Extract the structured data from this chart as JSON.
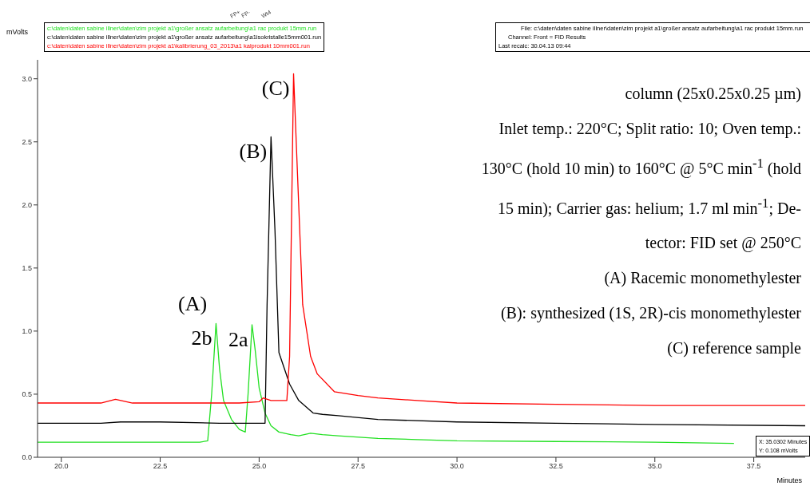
{
  "chart_data": {
    "type": "line",
    "xlabel": "Minutes",
    "ylabel": "mVolts",
    "xlim": [
      19.4,
      38.8
    ],
    "xticks": [
      {
        "value": 20,
        "label": "20.0"
      },
      {
        "value": 22.5,
        "label": "22.5"
      },
      {
        "value": 25,
        "label": "25.0"
      },
      {
        "value": 27.5,
        "label": "27.5"
      },
      {
        "value": 30,
        "label": "30.0"
      },
      {
        "value": 32.5,
        "label": "32.5"
      },
      {
        "value": 35,
        "label": "35.0"
      },
      {
        "value": 37.5,
        "label": "37.5"
      }
    ],
    "ylim": [
      0,
      3.15
    ],
    "yticks": [
      {
        "value": 0,
        "label": "0.0"
      },
      {
        "value": 0.5,
        "label": "0.5"
      },
      {
        "value": 1,
        "label": "1.0"
      },
      {
        "value": 1.5,
        "label": "1.5"
      },
      {
        "value": 2,
        "label": "2.0"
      },
      {
        "value": 2.5,
        "label": "2.5"
      },
      {
        "value": 3,
        "label": "3.0"
      }
    ],
    "legend": "top left",
    "marker": "none",
    "line_style": "solid",
    "series": [
      {
        "name": "c:\\daten\\daten sabine illner\\daten\\zim projekt a1\\großer ansatz aufarbeitung\\a1 rac produkt 15mm.run",
        "color": "#22e022",
        "x": [
          19.4,
          20.5,
          21.5,
          22.5,
          23.5,
          23.7,
          23.8,
          23.91,
          24.0,
          24.1,
          24.3,
          24.5,
          24.65,
          24.72,
          24.82,
          24.9,
          25.0,
          25.15,
          25.3,
          25.5,
          25.8,
          26.0,
          26.3,
          26.6,
          27.0,
          28.0,
          29.0,
          30.0,
          32.5,
          35.0,
          37.0
        ],
        "values": [
          0.12,
          0.12,
          0.12,
          0.12,
          0.12,
          0.13,
          0.5,
          1.06,
          0.7,
          0.45,
          0.3,
          0.22,
          0.2,
          0.5,
          1.05,
          0.85,
          0.55,
          0.35,
          0.25,
          0.2,
          0.18,
          0.17,
          0.19,
          0.18,
          0.17,
          0.15,
          0.14,
          0.13,
          0.125,
          0.12,
          0.11
        ]
      },
      {
        "name": "c:\\daten\\daten sabine illner\\daten\\zim projekt a1\\großer ansatz aufarbeitung\\a1isokristalle15mm001.run",
        "color": "#000000",
        "x": [
          19.4,
          21.0,
          21.5,
          22.5,
          24.0,
          25.0,
          25.15,
          25.2,
          25.3,
          25.4,
          25.5,
          25.77,
          26.0,
          26.37,
          26.6,
          27.0,
          28.0,
          30.0,
          32.5,
          35.0,
          38.8
        ],
        "values": [
          0.27,
          0.27,
          0.28,
          0.28,
          0.27,
          0.27,
          0.27,
          1.2,
          2.54,
          1.8,
          0.83,
          0.58,
          0.45,
          0.35,
          0.34,
          0.33,
          0.3,
          0.28,
          0.27,
          0.26,
          0.25
        ]
      },
      {
        "name": "c:\\daten\\daten sabine illner\\daten\\zim projekt a1\\kalibrierung_03_2013\\a1 kalprodukt 10mm001.run",
        "color": "#ff0000",
        "x": [
          19.4,
          21.0,
          21.37,
          21.8,
          23.0,
          24.5,
          25.0,
          25.1,
          25.3,
          25.7,
          25.77,
          25.87,
          26.0,
          26.1,
          26.3,
          26.47,
          26.9,
          27.5,
          28.0,
          29.0,
          30.0,
          32.5,
          35.0,
          38.8
        ],
        "values": [
          0.43,
          0.43,
          0.46,
          0.43,
          0.43,
          0.43,
          0.44,
          0.47,
          0.45,
          0.45,
          0.8,
          3.04,
          2.0,
          1.21,
          0.8,
          0.66,
          0.52,
          0.49,
          0.47,
          0.45,
          0.43,
          0.42,
          0.41,
          0.41
        ]
      }
    ],
    "annotations": [
      "File: c:\\daten\\daten sabine illner\\daten\\zim projekt a1\\großer ansatz aufarbeitung\\a1 rac produkt 15mm.run",
      "Channel: Front = FID  Results",
      "Last recalc: 30.04.13 09:44",
      "column (25x0.25x0.25 µm)",
      "Inlet temp.: 220°C; Split ratio: 10; Oven temp.:",
      "130°C (hold 10 min) to 160°C @ 5°C min$^{-1}$ (hold",
      "15 min); Carrier gas: helium; 1.7 ml min$^{-1}$; De-",
      "tector: FID set @ 250°C",
      "(A) Racemic monomethylester",
      "(B): synthesized (1S, 2R)-cis monomethylester",
      "(C) reference sample",
      "X: 35.0302 Minutes",
      "Y: 0.108 mVolts",
      "(A)",
      {
        "text": "2b",
        "x": 23.91,
        "y": 1.06
      },
      {
        "text": "2a",
        "x": 24.82,
        "y": 1.05
      },
      {
        "text": "(B)",
        "x": 25.3,
        "y": 2.54
      },
      {
        "text": "(C)",
        "x": 25.87,
        "y": 3.04
      },
      "FP+",
      "FP-",
      "Wt4"
    ]
  }
}
